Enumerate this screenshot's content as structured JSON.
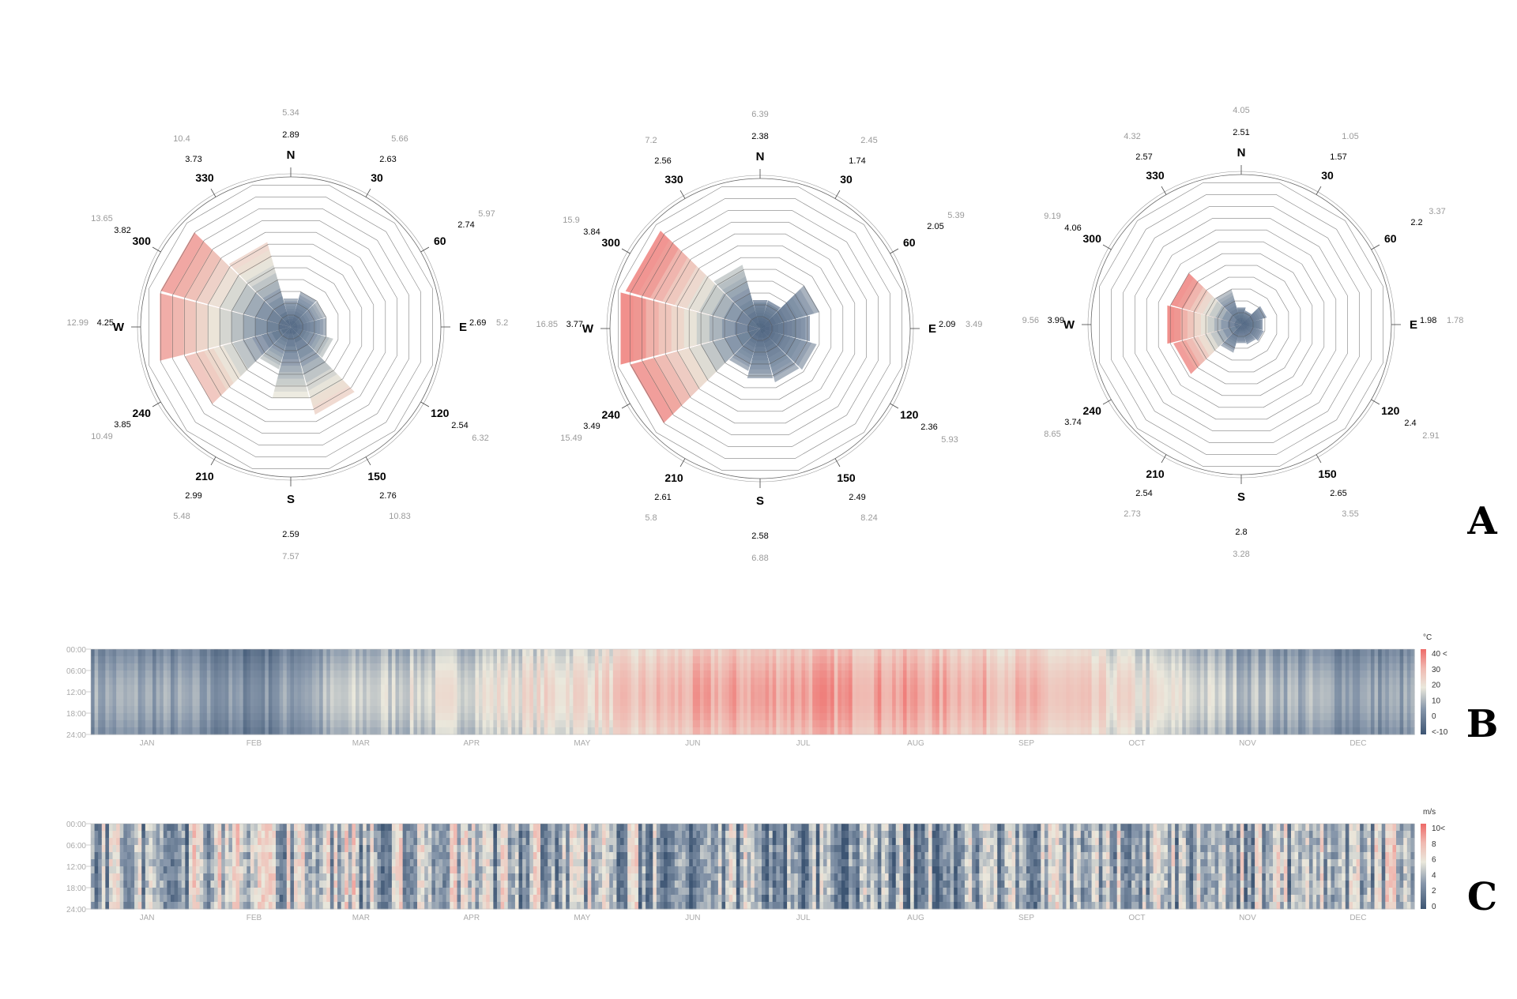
{
  "panels": [
    "A",
    "B",
    "C"
  ],
  "colors": {
    "cold": "#3d5573",
    "cool": "#8797ab",
    "mid": "#eae8dc",
    "warm": "#f0b8b0",
    "hot": "#ee6a68",
    "gray_label": "#9a9a9a",
    "black_label": "#000000"
  },
  "chart_data": [
    {
      "type": "polar",
      "panel": "A",
      "direction_labels": [
        "N",
        "30",
        "60",
        "E",
        "120",
        "150",
        "S",
        "210",
        "240",
        "W",
        "300",
        "330"
      ],
      "values_black": [
        2.89,
        2.63,
        2.74,
        2.69,
        2.54,
        2.76,
        2.59,
        2.99,
        3.85,
        4.25,
        3.82,
        3.73
      ],
      "values_gray": [
        5.34,
        5.66,
        5.97,
        5.2,
        6.32,
        10.83,
        7.57,
        5.48,
        10.49,
        12.99,
        13.65,
        10.4
      ],
      "sector_extent": [
        0.2,
        0.25,
        0.25,
        0.25,
        0.3,
        0.62,
        0.5,
        0.3,
        0.75,
        0.92,
        0.92,
        0.6
      ],
      "sector_warmth": [
        0.3,
        0.3,
        0.35,
        0.3,
        0.4,
        0.6,
        0.5,
        0.4,
        0.7,
        0.8,
        0.82,
        0.6
      ]
    },
    {
      "type": "polar",
      "panel": "A",
      "direction_labels": [
        "N",
        "30",
        "60",
        "E",
        "120",
        "150",
        "S",
        "210",
        "240",
        "W",
        "300",
        "330"
      ],
      "values_black": [
        2.38,
        1.74,
        2.05,
        2.09,
        2.36,
        2.49,
        2.58,
        2.61,
        3.49,
        3.77,
        3.84,
        2.56
      ],
      "values_gray": [
        6.39,
        2.45,
        5.39,
        3.49,
        5.93,
        8.24,
        6.88,
        5.8,
        15.49,
        16.85,
        15.9,
        7.2
      ],
      "sector_extent": [
        0.2,
        0.2,
        0.42,
        0.35,
        0.4,
        0.38,
        0.35,
        0.3,
        0.92,
        0.98,
        0.95,
        0.45
      ],
      "sector_warmth": [
        0.2,
        0.2,
        0.3,
        0.25,
        0.3,
        0.3,
        0.3,
        0.3,
        0.85,
        0.9,
        0.88,
        0.4
      ]
    },
    {
      "type": "polar",
      "panel": "A",
      "direction_labels": [
        "N",
        "30",
        "60",
        "E",
        "120",
        "150",
        "S",
        "210",
        "240",
        "W",
        "300",
        "330"
      ],
      "values_black": [
        2.51,
        1.57,
        2.2,
        1.98,
        2.4,
        2.65,
        2.8,
        2.54,
        3.74,
        3.99,
        4.06,
        2.57
      ],
      "values_gray": [
        4.05,
        1.05,
        3.37,
        1.78,
        2.91,
        3.55,
        3.28,
        2.73,
        8.65,
        9.56,
        9.19,
        4.32
      ],
      "sector_extent": [
        0.12,
        0.1,
        0.18,
        0.15,
        0.16,
        0.14,
        0.13,
        0.2,
        0.48,
        0.52,
        0.5,
        0.25
      ],
      "sector_warmth": [
        0.2,
        0.2,
        0.25,
        0.2,
        0.25,
        0.25,
        0.25,
        0.3,
        0.85,
        0.9,
        0.88,
        0.35
      ]
    },
    {
      "type": "heatmap",
      "panel": "B",
      "unit": "°C",
      "y_labels": [
        "00:00",
        "06:00",
        "12:00",
        "18:00",
        "24:00"
      ],
      "x_labels": [
        "JAN",
        "FEB",
        "MAR",
        "APR",
        "MAY",
        "JUN",
        "JUL",
        "AUG",
        "SEP",
        "OCT",
        "NOV",
        "DEC"
      ],
      "legend_labels": [
        "40 <",
        "30",
        "20",
        "10",
        "0",
        "<-10"
      ],
      "vmin": -10,
      "vmax": 40,
      "monthly_mean": [
        2,
        -3,
        8,
        12,
        16,
        24,
        27,
        26,
        22,
        13,
        6,
        1
      ]
    },
    {
      "type": "heatmap",
      "panel": "C",
      "unit": "m/s",
      "y_labels": [
        "00:00",
        "06:00",
        "12:00",
        "18:00",
        "24:00"
      ],
      "x_labels": [
        "JAN",
        "FEB",
        "MAR",
        "APR",
        "MAY",
        "JUN",
        "JUL",
        "AUG",
        "SEP",
        "OCT",
        "NOV",
        "DEC"
      ],
      "legend_labels": [
        "10<",
        "8",
        "6",
        "4",
        "2",
        "0"
      ],
      "vmin": 0,
      "vmax": 10,
      "monthly_mean": [
        4,
        4.5,
        4.2,
        4,
        3.8,
        3.2,
        3,
        3,
        3.2,
        3.6,
        3.8,
        4.5
      ]
    }
  ]
}
